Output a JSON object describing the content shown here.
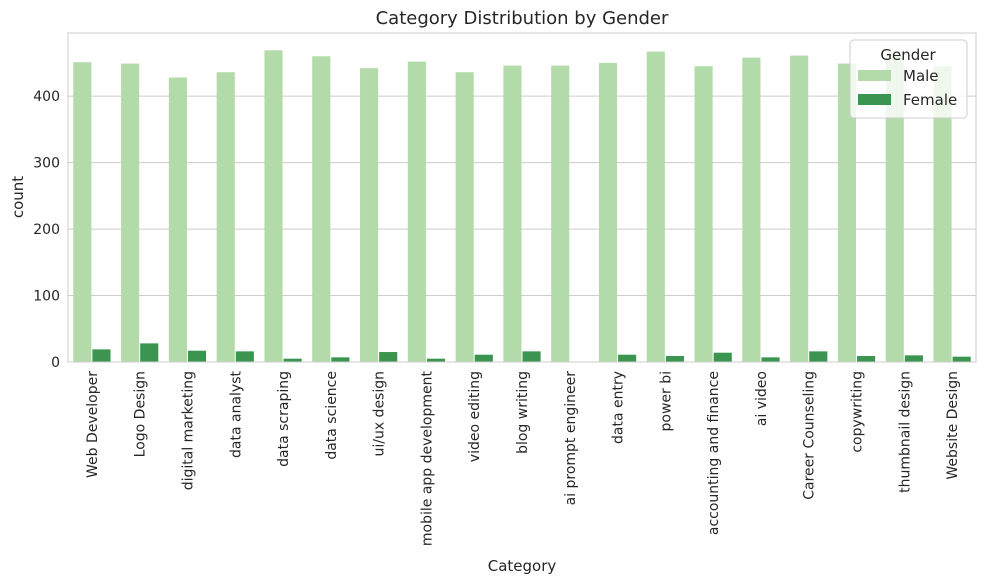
{
  "chart_data": {
    "type": "bar",
    "title": "Category Distribution by Gender",
    "xlabel": "Category",
    "ylabel": "count",
    "ylim": [
      0,
      495
    ],
    "yticks": [
      0,
      100,
      200,
      300,
      400
    ],
    "grid": true,
    "legend": {
      "title": "Gender",
      "position": "top-right"
    },
    "categories": [
      "Web Developer",
      "Logo Design",
      "digital marketing",
      "data analyst",
      "data scraping",
      "data science",
      "ui/ux design",
      "mobile app development",
      "video editing",
      "blog writing",
      "ai prompt engineer",
      "data entry",
      "power bi",
      "accounting and finance",
      "ai video",
      "Career Counseling",
      "copywriting",
      "thumbnail design",
      "Website Design"
    ],
    "series": [
      {
        "name": "Male",
        "color": "#b3dbaa",
        "values": [
          451,
          449,
          428,
          436,
          469,
          460,
          442,
          452,
          436,
          446,
          446,
          450,
          467,
          445,
          458,
          461,
          449,
          466,
          445
        ]
      },
      {
        "name": "Female",
        "color": "#3b9450",
        "values": [
          19,
          28,
          17,
          16,
          5,
          7,
          15,
          5,
          11,
          16,
          0,
          11,
          9,
          14,
          7,
          16,
          9,
          10,
          8
        ]
      }
    ]
  }
}
